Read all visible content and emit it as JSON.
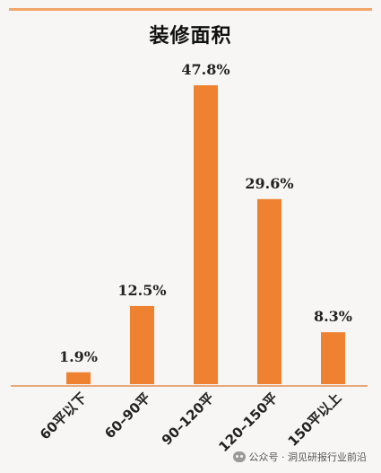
{
  "chart_data": {
    "type": "bar",
    "title": "装修面积",
    "categories": [
      "60平以下",
      "60–90平",
      "90–120平",
      "120–150平",
      "150平以上"
    ],
    "values": [
      1.9,
      12.5,
      47.8,
      29.6,
      8.3
    ],
    "value_labels": [
      "1.9%",
      "12.5%",
      "47.8%",
      "29.6%",
      "8.3%"
    ],
    "ylim": [
      0,
      50
    ],
    "grid": false,
    "legend": "none",
    "colors": {
      "bar": "#ee8231",
      "accent_rule": "#f2a66a",
      "baseline": "#e9a87a"
    }
  },
  "watermark": {
    "icon": "wechat-icon",
    "text": "公众号 · 洞见研报行业前沿"
  }
}
